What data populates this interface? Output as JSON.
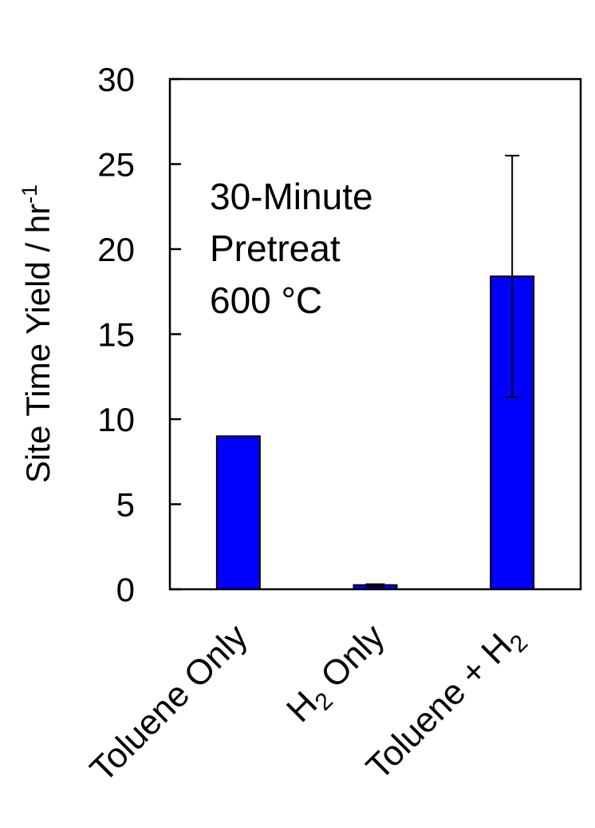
{
  "chart_data": {
    "type": "bar",
    "title": "",
    "xlabel": "",
    "ylabel": "Site Time Yield / hr",
    "ylabel_superscript": "-1",
    "ylim": [
      0,
      30
    ],
    "yticks": [
      "0",
      "5",
      "10",
      "15",
      "20",
      "25",
      "30"
    ],
    "grid": false,
    "categories": [
      {
        "main": "Toluene Only",
        "sub": "",
        "tail": ""
      },
      {
        "main": "H",
        "sub": "2",
        "tail": " Only"
      },
      {
        "main": "Toluene + H",
        "sub": "2",
        "tail": ""
      }
    ],
    "values": [
      9.0,
      0.25,
      18.4
    ],
    "error_bars": [
      null,
      [
        0.15,
        0.3
      ],
      [
        11.3,
        25.5
      ]
    ],
    "bar_color": "#0000ff",
    "annotation": [
      "30-Minute",
      "Pretreat",
      "600 °C"
    ]
  }
}
